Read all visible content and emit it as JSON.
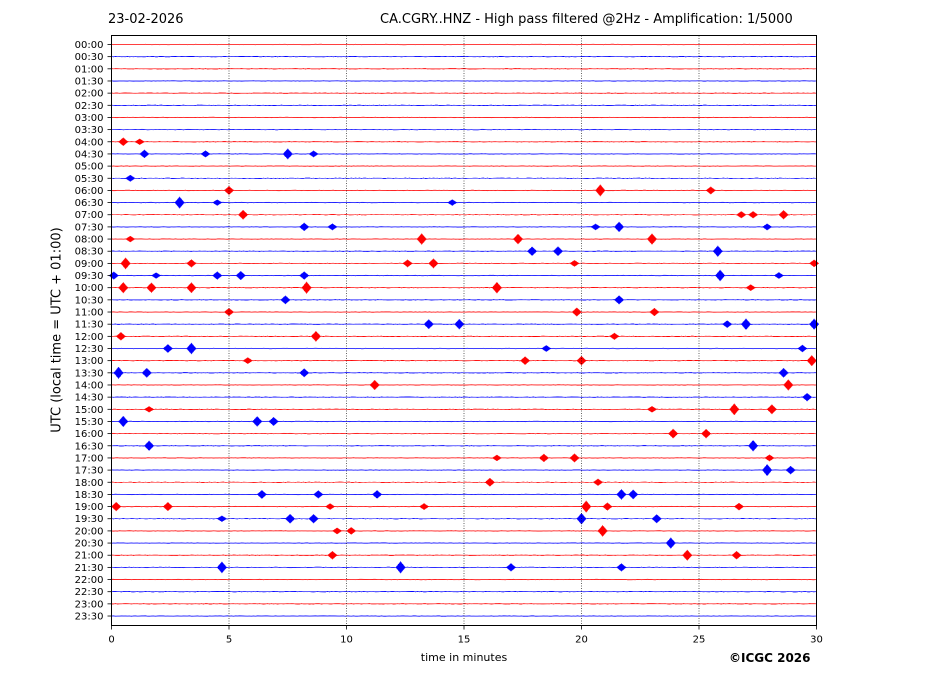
{
  "header": {
    "date": "23-02-2026",
    "title": "CA.CGRY..HNZ - High pass filtered @2Hz - Amplification: 1/5000"
  },
  "footer": {
    "copyright": "©ICGC 2026"
  },
  "chart_data": {
    "type": "helicorder",
    "xlabel": "time in minutes",
    "ylabel": "UTC (local time = UTC + 01:00)",
    "xlim": [
      0,
      30
    ],
    "xticks": [
      0,
      5,
      10,
      15,
      20,
      25,
      30
    ],
    "row_labels": [
      "00:00",
      "00:30",
      "01:00",
      "01:30",
      "02:00",
      "02:30",
      "03:00",
      "03:30",
      "04:00",
      "04:30",
      "05:00",
      "05:30",
      "06:00",
      "06:30",
      "07:00",
      "07:30",
      "08:00",
      "08:30",
      "09:00",
      "09:30",
      "10:00",
      "10:30",
      "11:00",
      "11:30",
      "12:00",
      "12:30",
      "13:00",
      "13:30",
      "14:00",
      "14:30",
      "15:00",
      "15:30",
      "16:00",
      "16:30",
      "17:00",
      "17:30",
      "18:00",
      "18:30",
      "19:00",
      "19:30",
      "20:00",
      "20:30",
      "21:00",
      "21:30",
      "22:00",
      "22:30",
      "23:00",
      "23:30"
    ],
    "colors": [
      "#ff0000",
      "#0000ff"
    ],
    "grid": "vertical dotted lines at 5-minute intervals",
    "events": [
      {
        "row": 8,
        "minutes": [
          0.5,
          1.2
        ]
      },
      {
        "row": 9,
        "minutes": [
          1.4,
          7.5,
          8.6,
          4.0
        ]
      },
      {
        "row": 11,
        "minutes": [
          0.8
        ]
      },
      {
        "row": 12,
        "minutes": [
          5.0,
          20.8,
          25.5
        ]
      },
      {
        "row": 13,
        "minutes": [
          2.9,
          4.5,
          14.5
        ]
      },
      {
        "row": 14,
        "minutes": [
          5.6,
          26.8,
          27.3,
          28.6
        ]
      },
      {
        "row": 15,
        "minutes": [
          8.2,
          9.4,
          20.6,
          21.6,
          27.9
        ]
      },
      {
        "row": 16,
        "minutes": [
          0.8,
          13.2,
          17.3,
          23.0
        ]
      },
      {
        "row": 17,
        "minutes": [
          17.9,
          19.0,
          25.8
        ]
      },
      {
        "row": 18,
        "minutes": [
          0.6,
          3.4,
          12.6,
          13.7,
          19.7,
          29.9
        ]
      },
      {
        "row": 19,
        "minutes": [
          0.1,
          1.9,
          4.5,
          5.5,
          8.2,
          25.9,
          28.4
        ]
      },
      {
        "row": 20,
        "minutes": [
          0.5,
          1.7,
          3.4,
          8.3,
          16.4,
          27.2
        ]
      },
      {
        "row": 21,
        "minutes": [
          7.4,
          21.6
        ]
      },
      {
        "row": 22,
        "minutes": [
          5.0,
          19.8,
          23.1
        ]
      },
      {
        "row": 23,
        "minutes": [
          13.5,
          14.8,
          26.2,
          27.0,
          29.9
        ]
      },
      {
        "row": 24,
        "minutes": [
          0.4,
          8.7,
          21.4
        ]
      },
      {
        "row": 25,
        "minutes": [
          2.4,
          3.4,
          18.5,
          29.4
        ]
      },
      {
        "row": 26,
        "minutes": [
          5.8,
          17.6,
          20.0,
          29.8
        ]
      },
      {
        "row": 27,
        "minutes": [
          0.3,
          1.5,
          8.2,
          28.6
        ]
      },
      {
        "row": 28,
        "minutes": [
          11.2,
          28.8
        ]
      },
      {
        "row": 29,
        "minutes": [
          29.6
        ]
      },
      {
        "row": 30,
        "minutes": [
          1.6,
          23.0,
          26.5,
          28.1
        ]
      },
      {
        "row": 31,
        "minutes": [
          0.5,
          6.2,
          6.9
        ]
      },
      {
        "row": 32,
        "minutes": [
          23.9,
          25.3
        ]
      },
      {
        "row": 33,
        "minutes": [
          1.6,
          27.3
        ]
      },
      {
        "row": 34,
        "minutes": [
          16.4,
          18.4,
          19.7,
          28.0
        ]
      },
      {
        "row": 35,
        "minutes": [
          27.9,
          28.9
        ]
      },
      {
        "row": 36,
        "minutes": [
          16.1,
          20.7
        ]
      },
      {
        "row": 37,
        "minutes": [
          6.4,
          8.8,
          11.3,
          21.7,
          22.2
        ]
      },
      {
        "row": 38,
        "minutes": [
          0.2,
          2.4,
          9.3,
          13.3,
          20.2,
          21.1,
          26.7
        ]
      },
      {
        "row": 39,
        "minutes": [
          4.7,
          7.6,
          8.6,
          20.0,
          23.2
        ]
      },
      {
        "row": 40,
        "minutes": [
          9.6,
          10.2,
          20.9
        ]
      },
      {
        "row": 41,
        "minutes": [
          23.8
        ]
      },
      {
        "row": 42,
        "minutes": [
          9.4,
          24.5,
          26.6
        ]
      },
      {
        "row": 43,
        "minutes": [
          4.7,
          12.3,
          17.0,
          21.7
        ]
      }
    ]
  }
}
